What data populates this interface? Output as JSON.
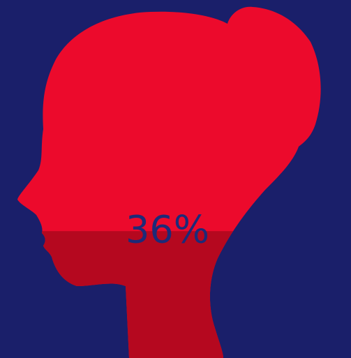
{
  "chart_data": {
    "type": "pictorial",
    "values": [
      36
    ],
    "value_labels": [
      "36%"
    ],
    "ylim": [
      0,
      100
    ],
    "color": "#b5081f",
    "background_color": "#ec0a2c",
    "label_color": "#1d2a78"
  }
}
